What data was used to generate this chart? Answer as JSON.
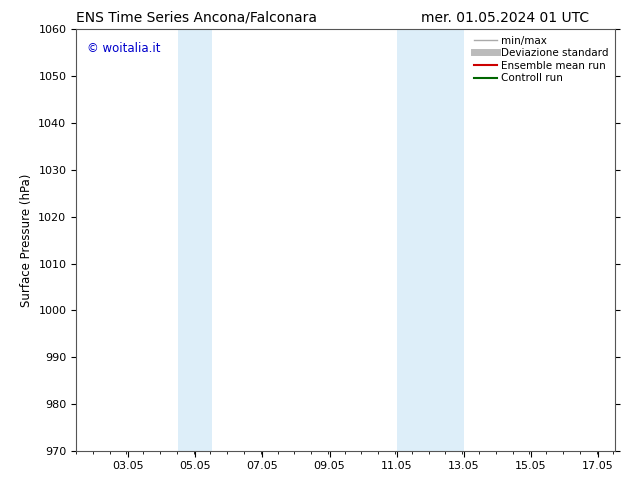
{
  "title_left": "ENS Time Series Ancona/Falconara",
  "title_right": "mer. 01.05.2024 01 UTC",
  "ylabel": "Surface Pressure (hPa)",
  "ylim": [
    970,
    1060
  ],
  "yticks": [
    970,
    980,
    990,
    1000,
    1010,
    1020,
    1030,
    1040,
    1050,
    1060
  ],
  "xlim_start": 1.5,
  "xlim_end": 17.55,
  "xtick_labels": [
    "03.05",
    "05.05",
    "07.05",
    "09.05",
    "11.05",
    "13.05",
    "15.05",
    "17.05"
  ],
  "xtick_positions": [
    3.05,
    5.05,
    7.05,
    9.05,
    11.05,
    13.05,
    15.05,
    17.05
  ],
  "shaded_bands": [
    {
      "xmin": 4.55,
      "xmax": 5.55
    },
    {
      "xmin": 11.05,
      "xmax": 13.05
    }
  ],
  "shaded_color": "#ddeef9",
  "watermark_text": "© woitalia.it",
  "watermark_color": "#0000cc",
  "legend_entries": [
    {
      "label": "min/max",
      "color": "#aaaaaa",
      "lw": 1.0
    },
    {
      "label": "Deviazione standard",
      "color": "#bbbbbb",
      "lw": 5.0
    },
    {
      "label": "Ensemble mean run",
      "color": "#cc0000",
      "lw": 1.5
    },
    {
      "label": "Controll run",
      "color": "#006600",
      "lw": 1.5
    }
  ],
  "bg_color": "#ffffff",
  "spine_color": "#555555",
  "title_fontsize": 10,
  "label_fontsize": 8.5,
  "tick_fontsize": 8,
  "legend_fontsize": 7.5,
  "watermark_fontsize": 8.5
}
